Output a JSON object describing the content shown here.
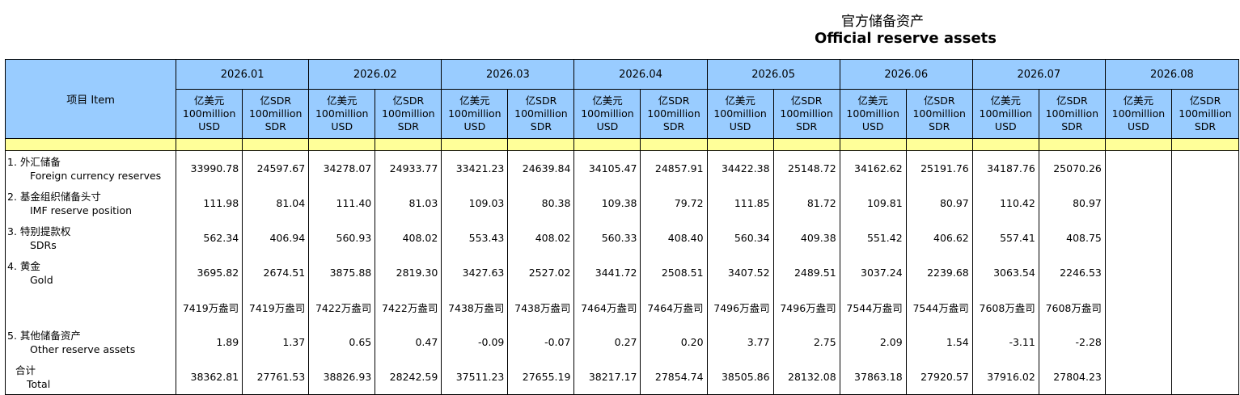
{
  "title_zh": "官方储备资产",
  "title_en": "Official reserve assets",
  "item_header": "项目 Item",
  "unit_usd": [
    "亿美元",
    "100million",
    "USD"
  ],
  "unit_sdr": [
    "亿SDR",
    "100million",
    "SDR"
  ],
  "periods": [
    "2026.01",
    "2026.02",
    "2026.03",
    "2026.04",
    "2026.05",
    "2026.06",
    "2026.07",
    "2026.08"
  ],
  "rows": [
    {
      "zh": "1.  外汇储备",
      "en": "Foreign currency reserves",
      "values": [
        "33990.78",
        "24597.67",
        "34278.07",
        "24933.77",
        "33421.23",
        "24639.84",
        "34105.47",
        "24857.91",
        "34422.38",
        "25148.72",
        "34162.62",
        "25191.76",
        "34187.76",
        "25070.26",
        "",
        ""
      ]
    },
    {
      "zh": "2.  基金组织储备头寸",
      "en": "IMF reserve position",
      "values": [
        "111.98",
        "81.04",
        "111.40",
        "81.03",
        "109.03",
        "80.38",
        "109.38",
        "79.72",
        "111.85",
        "81.72",
        "109.81",
        "80.97",
        "110.42",
        "80.97",
        "",
        ""
      ]
    },
    {
      "zh": "3.  特别提款权",
      "en": "SDRs",
      "values": [
        "562.34",
        "406.94",
        "560.93",
        "408.02",
        "553.43",
        "408.02",
        "560.33",
        "408.40",
        "560.34",
        "409.38",
        "551.42",
        "406.62",
        "557.41",
        "408.75",
        "",
        ""
      ]
    },
    {
      "zh": "4.  黄金",
      "en": "Gold",
      "values": [
        "3695.82",
        "2674.51",
        "3875.88",
        "2819.30",
        "3427.63",
        "2527.02",
        "3441.72",
        "2508.51",
        "3407.52",
        "2489.51",
        "3037.24",
        "2239.68",
        "3063.54",
        "2246.53",
        "",
        ""
      ]
    },
    {
      "zh": "",
      "en": "",
      "values": [
        "7419万盎司",
        "7419万盎司",
        "7422万盎司",
        "7422万盎司",
        "7438万盎司",
        "7438万盎司",
        "7464万盎司",
        "7464万盎司",
        "7496万盎司",
        "7496万盎司",
        "7544万盎司",
        "7544万盎司",
        "7608万盎司",
        "7608万盎司",
        "",
        ""
      ]
    },
    {
      "zh": "5.  其他储备资产",
      "en": "Other reserve assets",
      "values": [
        "1.89",
        "1.37",
        "0.65",
        "0.47",
        "-0.09",
        "-0.07",
        "0.27",
        "0.20",
        "3.77",
        "2.75",
        "2.09",
        "1.54",
        "-3.11",
        "-2.28",
        "",
        ""
      ]
    },
    {
      "zh": "合计",
      "en": "Total",
      "total": true,
      "values": [
        "38362.81",
        "27761.53",
        "38826.93",
        "28242.59",
        "37511.23",
        "27655.19",
        "38217.17",
        "27854.74",
        "38505.86",
        "28132.08",
        "37863.18",
        "27920.57",
        "37916.02",
        "27804.23",
        "",
        ""
      ]
    }
  ]
}
